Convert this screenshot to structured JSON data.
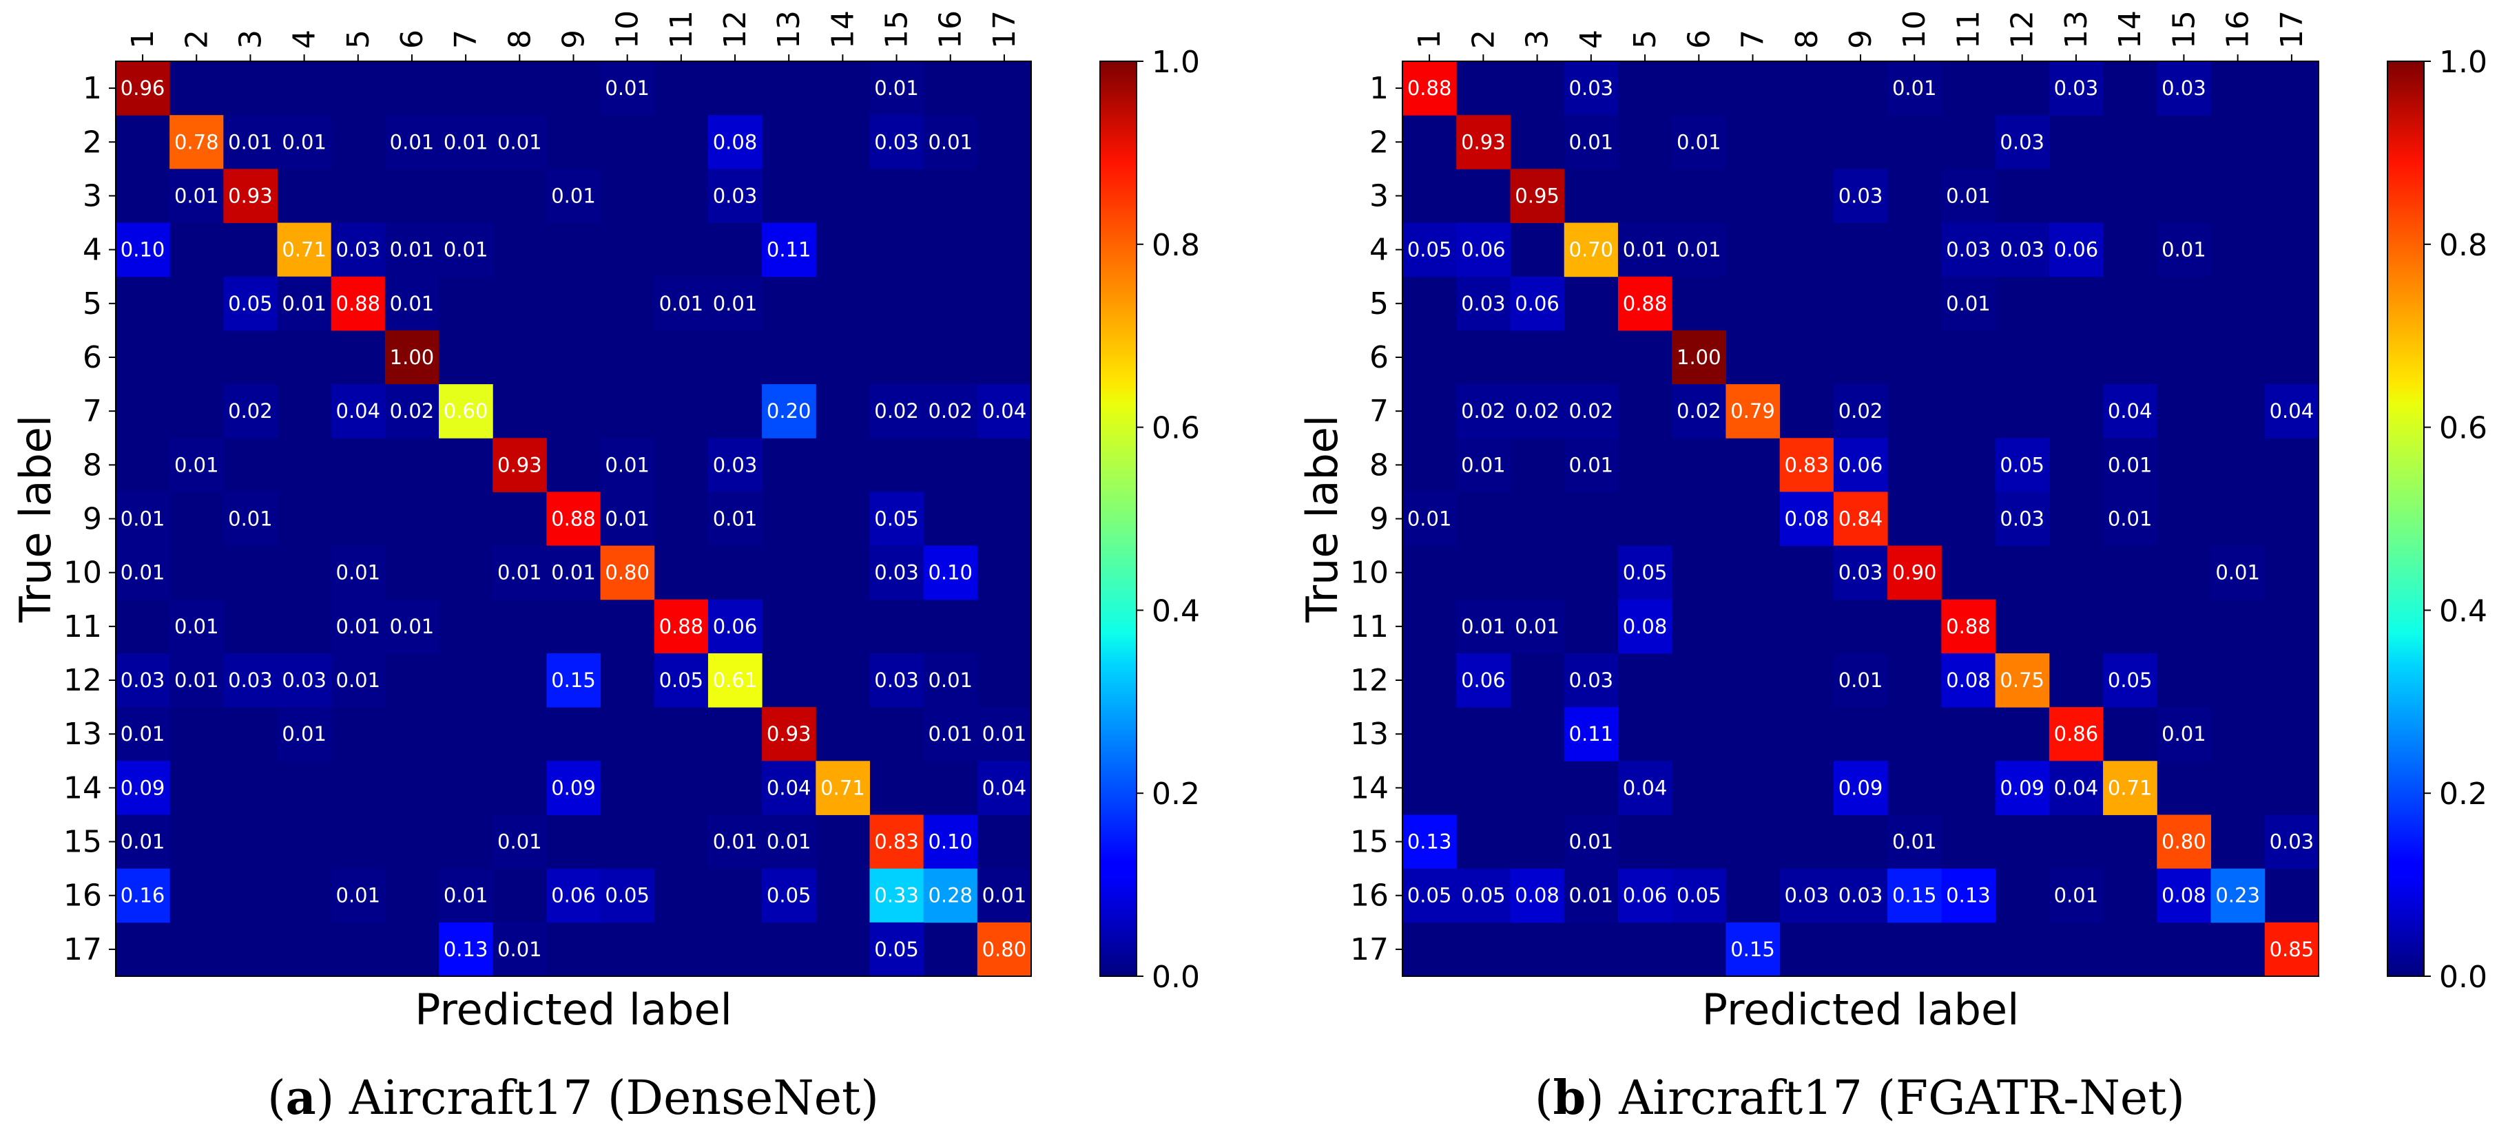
{
  "chart_data": [
    {
      "type": "heatmap",
      "title": "",
      "caption_letter": "a",
      "caption_text": "Aircraft17 (DenseNet)",
      "xlabel": "Predicted label",
      "ylabel": "True label",
      "categories": [
        "1",
        "2",
        "3",
        "4",
        "5",
        "6",
        "7",
        "8",
        "9",
        "10",
        "11",
        "12",
        "13",
        "14",
        "15",
        "16",
        "17"
      ],
      "colorbar": {
        "range": [
          0.0,
          1.0
        ],
        "ticks": [
          "0.0",
          "0.2",
          "0.4",
          "0.6",
          "0.8",
          "1.0"
        ],
        "colormap": "jet"
      },
      "cells": [
        [
          0,
          0,
          0.96
        ],
        [
          0,
          9,
          0.01
        ],
        [
          0,
          14,
          0.01
        ],
        [
          1,
          1,
          0.78
        ],
        [
          1,
          2,
          0.01
        ],
        [
          1,
          3,
          0.01
        ],
        [
          1,
          5,
          0.01
        ],
        [
          1,
          6,
          0.01
        ],
        [
          1,
          7,
          0.01
        ],
        [
          1,
          11,
          0.08
        ],
        [
          1,
          14,
          0.03
        ],
        [
          1,
          15,
          0.01
        ],
        [
          2,
          1,
          0.01
        ],
        [
          2,
          2,
          0.93
        ],
        [
          2,
          8,
          0.01
        ],
        [
          2,
          11,
          0.03
        ],
        [
          3,
          0,
          0.1
        ],
        [
          3,
          3,
          0.71
        ],
        [
          3,
          4,
          0.03
        ],
        [
          3,
          5,
          0.01
        ],
        [
          3,
          6,
          0.01
        ],
        [
          3,
          12,
          0.11
        ],
        [
          4,
          2,
          0.05
        ],
        [
          4,
          3,
          0.01
        ],
        [
          4,
          4,
          0.88
        ],
        [
          4,
          5,
          0.01
        ],
        [
          4,
          10,
          0.01
        ],
        [
          4,
          11,
          0.01
        ],
        [
          5,
          5,
          1.0
        ],
        [
          6,
          2,
          0.02
        ],
        [
          6,
          4,
          0.04
        ],
        [
          6,
          5,
          0.02
        ],
        [
          6,
          6,
          0.6
        ],
        [
          6,
          12,
          0.2
        ],
        [
          6,
          14,
          0.02
        ],
        [
          6,
          15,
          0.02
        ],
        [
          6,
          16,
          0.04
        ],
        [
          7,
          1,
          0.01
        ],
        [
          7,
          7,
          0.93
        ],
        [
          7,
          9,
          0.01
        ],
        [
          7,
          11,
          0.03
        ],
        [
          8,
          0,
          0.01
        ],
        [
          8,
          2,
          0.01
        ],
        [
          8,
          8,
          0.88
        ],
        [
          8,
          9,
          0.01
        ],
        [
          8,
          11,
          0.01
        ],
        [
          8,
          14,
          0.05
        ],
        [
          9,
          0,
          0.01
        ],
        [
          9,
          4,
          0.01
        ],
        [
          9,
          7,
          0.01
        ],
        [
          9,
          8,
          0.01
        ],
        [
          9,
          9,
          0.8
        ],
        [
          9,
          14,
          0.03
        ],
        [
          9,
          15,
          0.1
        ],
        [
          10,
          1,
          0.01
        ],
        [
          10,
          4,
          0.01
        ],
        [
          10,
          5,
          0.01
        ],
        [
          10,
          10,
          0.88
        ],
        [
          10,
          11,
          0.06
        ],
        [
          11,
          0,
          0.03
        ],
        [
          11,
          1,
          0.01
        ],
        [
          11,
          2,
          0.03
        ],
        [
          11,
          3,
          0.03
        ],
        [
          11,
          4,
          0.01
        ],
        [
          11,
          8,
          0.15
        ],
        [
          11,
          10,
          0.05
        ],
        [
          11,
          11,
          0.61
        ],
        [
          11,
          14,
          0.03
        ],
        [
          11,
          15,
          0.01
        ],
        [
          12,
          0,
          0.01
        ],
        [
          12,
          3,
          0.01
        ],
        [
          12,
          12,
          0.93
        ],
        [
          12,
          15,
          0.01
        ],
        [
          12,
          16,
          0.01
        ],
        [
          13,
          0,
          0.09
        ],
        [
          13,
          8,
          0.09
        ],
        [
          13,
          12,
          0.04
        ],
        [
          13,
          13,
          0.71
        ],
        [
          13,
          16,
          0.04
        ],
        [
          14,
          0,
          0.01
        ],
        [
          14,
          7,
          0.01
        ],
        [
          14,
          11,
          0.01
        ],
        [
          14,
          12,
          0.01
        ],
        [
          14,
          14,
          0.83
        ],
        [
          14,
          15,
          0.1
        ],
        [
          15,
          0,
          0.16
        ],
        [
          15,
          4,
          0.01
        ],
        [
          15,
          6,
          0.01
        ],
        [
          15,
          8,
          0.06
        ],
        [
          15,
          9,
          0.05
        ],
        [
          15,
          12,
          0.05
        ],
        [
          15,
          14,
          0.33
        ],
        [
          15,
          15,
          0.28
        ],
        [
          15,
          16,
          0.01
        ],
        [
          16,
          6,
          0.13
        ],
        [
          16,
          7,
          0.01
        ],
        [
          16,
          14,
          0.05
        ],
        [
          16,
          16,
          0.8
        ]
      ]
    },
    {
      "type": "heatmap",
      "title": "",
      "caption_letter": "b",
      "caption_text": "Aircraft17 (FGATR-Net)",
      "xlabel": "Predicted label",
      "ylabel": "True label",
      "categories": [
        "1",
        "2",
        "3",
        "4",
        "5",
        "6",
        "7",
        "8",
        "9",
        "10",
        "11",
        "12",
        "13",
        "14",
        "15",
        "16",
        "17"
      ],
      "colorbar": {
        "range": [
          0.0,
          1.0
        ],
        "ticks": [
          "0.0",
          "0.2",
          "0.4",
          "0.6",
          "0.8",
          "1.0"
        ],
        "colormap": "jet"
      },
      "cells": [
        [
          0,
          0,
          0.88
        ],
        [
          0,
          3,
          0.03
        ],
        [
          0,
          9,
          0.01
        ],
        [
          0,
          12,
          0.03
        ],
        [
          0,
          14,
          0.03
        ],
        [
          1,
          1,
          0.93
        ],
        [
          1,
          3,
          0.01
        ],
        [
          1,
          5,
          0.01
        ],
        [
          1,
          11,
          0.03
        ],
        [
          2,
          2,
          0.95
        ],
        [
          2,
          8,
          0.03
        ],
        [
          2,
          10,
          0.01
        ],
        [
          3,
          0,
          0.05
        ],
        [
          3,
          1,
          0.06
        ],
        [
          3,
          3,
          0.7
        ],
        [
          3,
          4,
          0.01
        ],
        [
          3,
          5,
          0.01
        ],
        [
          3,
          10,
          0.03
        ],
        [
          3,
          11,
          0.03
        ],
        [
          3,
          12,
          0.06
        ],
        [
          3,
          14,
          0.01
        ],
        [
          4,
          1,
          0.03
        ],
        [
          4,
          2,
          0.06
        ],
        [
          4,
          4,
          0.88
        ],
        [
          4,
          10,
          0.01
        ],
        [
          5,
          5,
          1.0
        ],
        [
          6,
          1,
          0.02
        ],
        [
          6,
          2,
          0.02
        ],
        [
          6,
          3,
          0.02
        ],
        [
          6,
          5,
          0.02
        ],
        [
          6,
          6,
          0.79
        ],
        [
          6,
          8,
          0.02
        ],
        [
          6,
          13,
          0.04
        ],
        [
          6,
          16,
          0.04
        ],
        [
          7,
          1,
          0.01
        ],
        [
          7,
          3,
          0.01
        ],
        [
          7,
          7,
          0.83
        ],
        [
          7,
          8,
          0.06
        ],
        [
          7,
          11,
          0.05
        ],
        [
          7,
          13,
          0.01
        ],
        [
          8,
          0,
          0.01
        ],
        [
          8,
          7,
          0.08
        ],
        [
          8,
          8,
          0.84
        ],
        [
          8,
          11,
          0.03
        ],
        [
          8,
          13,
          0.01
        ],
        [
          9,
          4,
          0.05
        ],
        [
          9,
          8,
          0.03
        ],
        [
          9,
          9,
          0.9
        ],
        [
          9,
          15,
          0.01
        ],
        [
          10,
          1,
          0.01
        ],
        [
          10,
          2,
          0.01
        ],
        [
          10,
          4,
          0.08
        ],
        [
          10,
          10,
          0.88
        ],
        [
          11,
          1,
          0.06
        ],
        [
          11,
          3,
          0.03
        ],
        [
          11,
          8,
          0.01
        ],
        [
          11,
          10,
          0.08
        ],
        [
          11,
          11,
          0.75
        ],
        [
          11,
          13,
          0.05
        ],
        [
          12,
          3,
          0.11
        ],
        [
          12,
          12,
          0.86
        ],
        [
          12,
          14,
          0.01
        ],
        [
          13,
          4,
          0.04
        ],
        [
          13,
          8,
          0.09
        ],
        [
          13,
          11,
          0.09
        ],
        [
          13,
          12,
          0.04
        ],
        [
          13,
          13,
          0.71
        ],
        [
          14,
          0,
          0.13
        ],
        [
          14,
          3,
          0.01
        ],
        [
          14,
          9,
          0.01
        ],
        [
          14,
          14,
          0.8
        ],
        [
          14,
          16,
          0.03
        ],
        [
          15,
          0,
          0.05
        ],
        [
          15,
          1,
          0.05
        ],
        [
          15,
          2,
          0.08
        ],
        [
          15,
          3,
          0.01
        ],
        [
          15,
          4,
          0.06
        ],
        [
          15,
          5,
          0.05
        ],
        [
          15,
          7,
          0.03
        ],
        [
          15,
          8,
          0.03
        ],
        [
          15,
          9,
          0.15
        ],
        [
          15,
          10,
          0.13
        ],
        [
          15,
          12,
          0.01
        ],
        [
          15,
          14,
          0.08
        ],
        [
          15,
          15,
          0.23
        ],
        [
          16,
          6,
          0.15
        ],
        [
          16,
          16,
          0.85
        ]
      ]
    }
  ]
}
